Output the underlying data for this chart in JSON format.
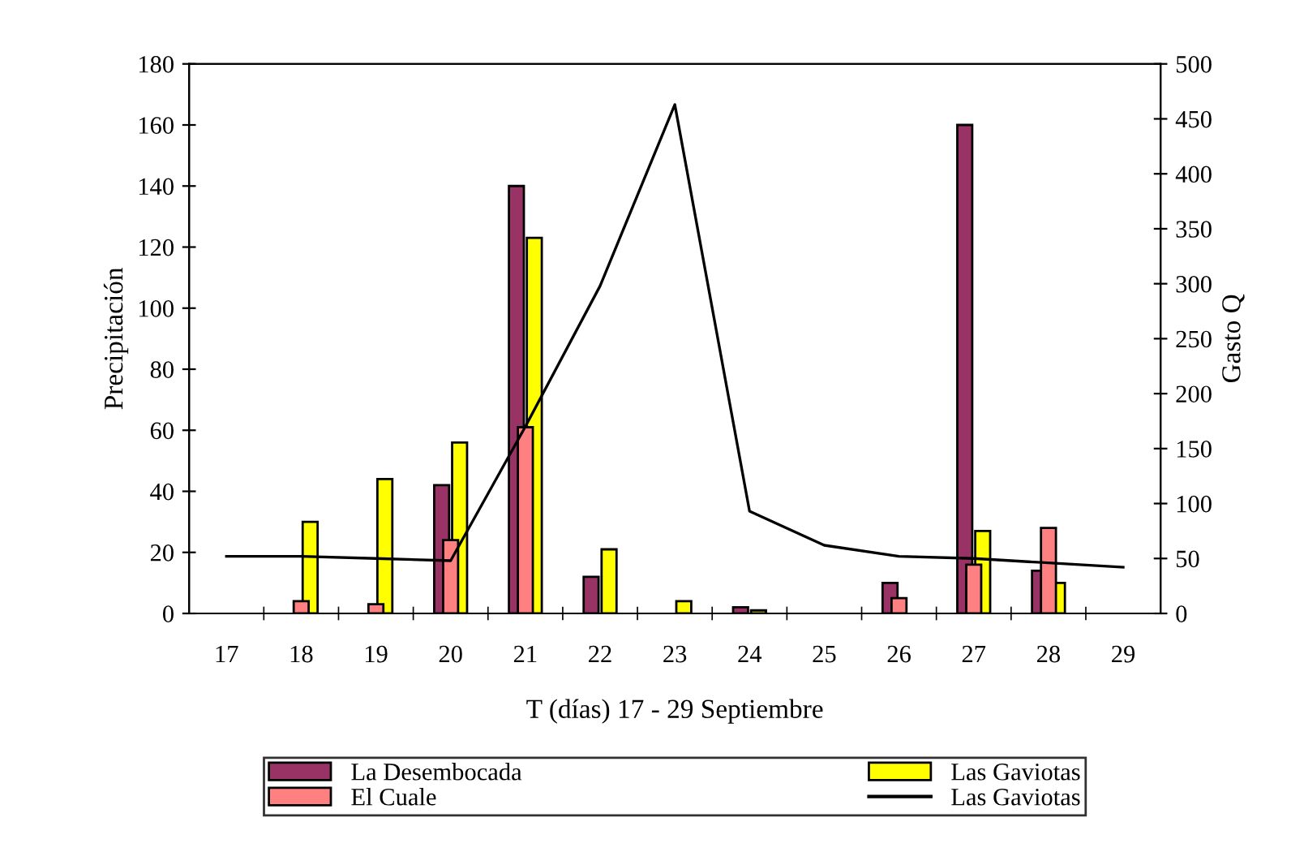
{
  "chart_data": {
    "type": "bar",
    "xlabel": "T (días) 17 - 29 Septiembre",
    "ylabel": "Precipitación",
    "y2label": "Gasto Q",
    "categories": [
      "17",
      "18",
      "19",
      "20",
      "21",
      "22",
      "23",
      "24",
      "25",
      "26",
      "27",
      "28",
      "29"
    ],
    "series": [
      {
        "name": "La Desembocada",
        "color": "#993366",
        "values": [
          null,
          null,
          null,
          42,
          140,
          12,
          null,
          2,
          null,
          10,
          160,
          14,
          null
        ]
      },
      {
        "name": "El Cuale",
        "color": "#ff8080",
        "values": [
          null,
          4,
          3,
          24,
          61,
          null,
          null,
          null,
          null,
          5,
          16,
          28,
          null
        ]
      },
      {
        "name": "Las Gaviotas",
        "color": "#ffff00",
        "values": [
          null,
          30,
          44,
          56,
          123,
          21,
          4,
          1,
          null,
          null,
          27,
          10,
          null
        ]
      },
      {
        "name": "Las Gaviotas",
        "type": "line",
        "axis": "y2",
        "color": "#000000",
        "values": [
          52,
          52,
          50,
          48,
          170,
          298,
          463,
          93,
          62,
          52,
          50,
          46,
          42
        ]
      }
    ],
    "ylim": [
      0,
      180
    ],
    "yticks": [
      0,
      20,
      40,
      60,
      80,
      100,
      120,
      140,
      160,
      180
    ],
    "y2lim": [
      0,
      500
    ],
    "y2ticks": [
      0,
      50,
      100,
      150,
      200,
      250,
      300,
      350,
      400,
      450,
      500
    ],
    "legend": "bottom",
    "grid": false,
    "marker": "none",
    "line_style": "solid"
  }
}
